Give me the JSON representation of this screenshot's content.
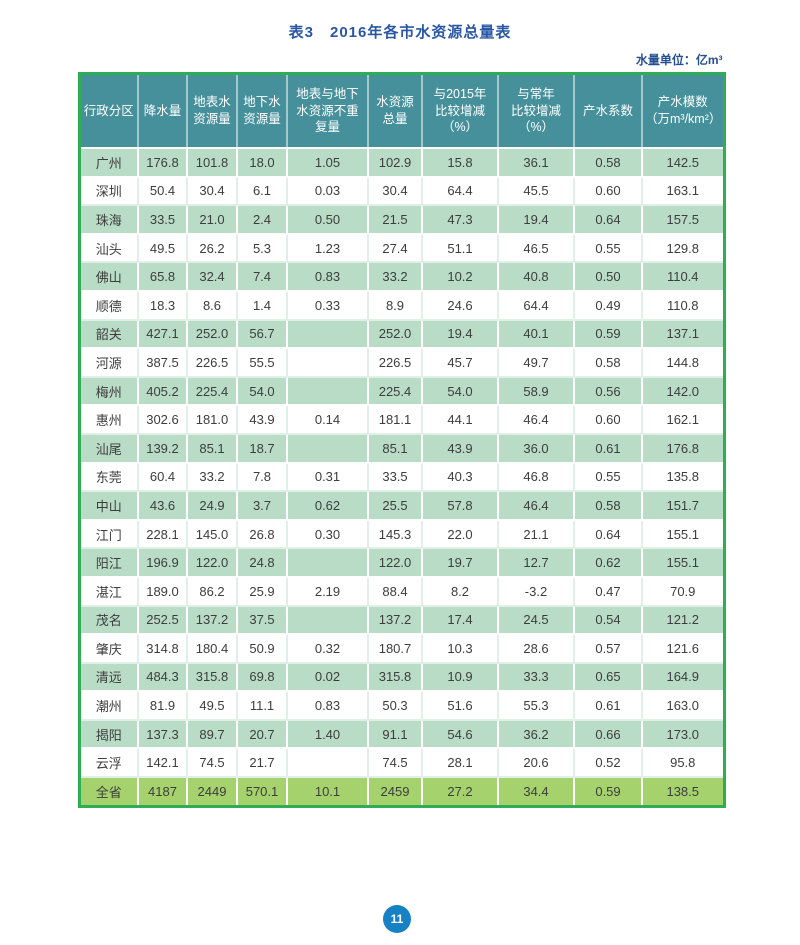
{
  "page": {
    "title": "表3　2016年各市水资源总量表",
    "unit_note": "水量单位：亿m³",
    "page_number": "11"
  },
  "colors": {
    "header_bg": "#46909b",
    "row_green": "#b9dcc6",
    "row_white": "#ffffff",
    "total_row_bg": "#a5d26c",
    "table_border_green": "#2fad52",
    "title_blue": "#2a57a5",
    "page_circle_blue": "#1681c4",
    "cell_text": "#3d3d3d"
  },
  "table": {
    "columns": [
      "行政分区",
      "降水量",
      "地表水\n资源量",
      "地下水\n资源量",
      "地表与地下\n水资源不重\n复量",
      "水资源\n总量",
      "与2015年\n比较增减\n（%）",
      "与常年\n比较增减\n（%）",
      "产水系数",
      "产水模数\n（万m³/km²）"
    ],
    "rows": [
      [
        "广州",
        "176.8",
        "101.8",
        "18.0",
        "1.05",
        "102.9",
        "15.8",
        "36.1",
        "0.58",
        "142.5"
      ],
      [
        "深圳",
        "50.4",
        "30.4",
        "6.1",
        "0.03",
        "30.4",
        "64.4",
        "45.5",
        "0.60",
        "163.1"
      ],
      [
        "珠海",
        "33.5",
        "21.0",
        "2.4",
        "0.50",
        "21.5",
        "47.3",
        "19.4",
        "0.64",
        "157.5"
      ],
      [
        "汕头",
        "49.5",
        "26.2",
        "5.3",
        "1.23",
        "27.4",
        "51.1",
        "46.5",
        "0.55",
        "129.8"
      ],
      [
        "佛山",
        "65.8",
        "32.4",
        "7.4",
        "0.83",
        "33.2",
        "10.2",
        "40.8",
        "0.50",
        "110.4"
      ],
      [
        "顺德",
        "18.3",
        "8.6",
        "1.4",
        "0.33",
        "8.9",
        "24.6",
        "64.4",
        "0.49",
        "110.8"
      ],
      [
        "韶关",
        "427.1",
        "252.0",
        "56.7",
        "",
        "252.0",
        "19.4",
        "40.1",
        "0.59",
        "137.1"
      ],
      [
        "河源",
        "387.5",
        "226.5",
        "55.5",
        "",
        "226.5",
        "45.7",
        "49.7",
        "0.58",
        "144.8"
      ],
      [
        "梅州",
        "405.2",
        "225.4",
        "54.0",
        "",
        "225.4",
        "54.0",
        "58.9",
        "0.56",
        "142.0"
      ],
      [
        "惠州",
        "302.6",
        "181.0",
        "43.9",
        "0.14",
        "181.1",
        "44.1",
        "46.4",
        "0.60",
        "162.1"
      ],
      [
        "汕尾",
        "139.2",
        "85.1",
        "18.7",
        "",
        "85.1",
        "43.9",
        "36.0",
        "0.61",
        "176.8"
      ],
      [
        "东莞",
        "60.4",
        "33.2",
        "7.8",
        "0.31",
        "33.5",
        "40.3",
        "46.8",
        "0.55",
        "135.8"
      ],
      [
        "中山",
        "43.6",
        "24.9",
        "3.7",
        "0.62",
        "25.5",
        "57.8",
        "46.4",
        "0.58",
        "151.7"
      ],
      [
        "江门",
        "228.1",
        "145.0",
        "26.8",
        "0.30",
        "145.3",
        "22.0",
        "21.1",
        "0.64",
        "155.1"
      ],
      [
        "阳江",
        "196.9",
        "122.0",
        "24.8",
        "",
        "122.0",
        "19.7",
        "12.7",
        "0.62",
        "155.1"
      ],
      [
        "湛江",
        "189.0",
        "86.2",
        "25.9",
        "2.19",
        "88.4",
        "8.2",
        "-3.2",
        "0.47",
        "70.9"
      ],
      [
        "茂名",
        "252.5",
        "137.2",
        "37.5",
        "",
        "137.2",
        "17.4",
        "24.5",
        "0.54",
        "121.2"
      ],
      [
        "肇庆",
        "314.8",
        "180.4",
        "50.9",
        "0.32",
        "180.7",
        "10.3",
        "28.6",
        "0.57",
        "121.6"
      ],
      [
        "清远",
        "484.3",
        "315.8",
        "69.8",
        "0.02",
        "315.8",
        "10.9",
        "33.3",
        "0.65",
        "164.9"
      ],
      [
        "潮州",
        "81.9",
        "49.5",
        "11.1",
        "0.83",
        "50.3",
        "51.6",
        "55.3",
        "0.61",
        "163.0"
      ],
      [
        "揭阳",
        "137.3",
        "89.7",
        "20.7",
        "1.40",
        "91.1",
        "54.6",
        "36.2",
        "0.66",
        "173.0"
      ],
      [
        "云浮",
        "142.1",
        "74.5",
        "21.7",
        "",
        "74.5",
        "28.1",
        "20.6",
        "0.52",
        "95.8"
      ]
    ],
    "total_row": [
      "全省",
      "4187",
      "2449",
      "570.1",
      "10.1",
      "2459",
      "27.2",
      "34.4",
      "0.59",
      "138.5"
    ]
  }
}
